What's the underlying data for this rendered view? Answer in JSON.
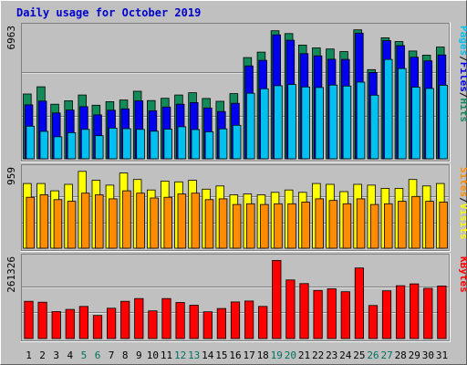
{
  "chart_data": {
    "type": "bar",
    "title": "Daily usage for October 2019",
    "categories": [
      "1",
      "2",
      "3",
      "4",
      "5",
      "6",
      "7",
      "8",
      "9",
      "10",
      "11",
      "12",
      "13",
      "14",
      "15",
      "16",
      "17",
      "18",
      "19",
      "20",
      "21",
      "22",
      "23",
      "24",
      "25",
      "26",
      "27",
      "28",
      "29",
      "30",
      "31"
    ],
    "weekend_days": [
      "5",
      "6",
      "12",
      "13",
      "19",
      "20",
      "26",
      "27"
    ],
    "grid": true,
    "colors": {
      "background": "#c0c0c0",
      "frame": "#808080",
      "title": "#0000cc",
      "grid": "#808080",
      "hits": "#128a5a",
      "files": "#0000ee",
      "pages": "#00c0f0",
      "visits": "#ffff00",
      "sites": "#ff8c00",
      "kbytes": "#ff0000",
      "weekend_label": "#007060",
      "weekday_label": "#000000"
    },
    "panels": [
      {
        "name": "top",
        "max_label": "6963",
        "ylim": [
          0,
          6963
        ],
        "axis_label_parts": [
          "Pages",
          "/",
          "Files",
          "/",
          "Hits"
        ],
        "axis_label_colors": [
          "pages",
          "black",
          "files",
          "black",
          "hits"
        ],
        "series": [
          {
            "name": "Hits",
            "color_key": "hits",
            "values": [
              3480,
              3870,
              2930,
              3120,
              3430,
              2880,
              3070,
              3160,
              3630,
              3130,
              3250,
              3430,
              3550,
              3240,
              3090,
              3500,
              5440,
              5730,
              6880,
              6730,
              6110,
              5960,
              5900,
              5760,
              6930,
              4790,
              6500,
              6300,
              5790,
              5570,
              6000
            ]
          },
          {
            "name": "Files",
            "color_key": "files",
            "values": [
              2900,
              3100,
              2460,
              2620,
              2800,
              2360,
              2610,
              2680,
              3120,
              2580,
              2780,
              2930,
              3020,
              2730,
              2540,
              2980,
              4990,
              5290,
              6660,
              6370,
              5650,
              5530,
              5350,
              5340,
              6750,
              4640,
              6350,
              6080,
              5460,
              5260,
              5580
            ]
          },
          {
            "name": "Pages",
            "color_key": "pages",
            "values": [
              1750,
              1470,
              1180,
              1400,
              1580,
              1240,
              1650,
              1620,
              1580,
              1480,
              1590,
              1720,
              1570,
              1450,
              1610,
              1800,
              3520,
              3760,
              3930,
              3990,
              3860,
              3830,
              3960,
              3910,
              4120,
              3420,
              5340,
              4850,
              3850,
              3780,
              3950
            ]
          }
        ]
      },
      {
        "name": "middle",
        "max_label": "959",
        "ylim": [
          0,
          959
        ],
        "axis_label_parts": [
          "Sites",
          "/",
          "Visits"
        ],
        "axis_label_colors": [
          "sites",
          "black",
          "visits"
        ],
        "series": [
          {
            "name": "Visits",
            "color_key": "visits",
            "values": [
              800,
              800,
              710,
              790,
              950,
              840,
              780,
              930,
              850,
              720,
              830,
              820,
              840,
              730,
              770,
              660,
              670,
              660,
              690,
              720,
              690,
              800,
              790,
              700,
              790,
              780,
              740,
              740,
              850,
              770,
              800
            ]
          },
          {
            "name": "Sites",
            "color_key": "sites",
            "values": [
              630,
              660,
              600,
              580,
              680,
              660,
              610,
              710,
              680,
              620,
              630,
              670,
              680,
              600,
              610,
              540,
              550,
              540,
              550,
              550,
              570,
              610,
              590,
              550,
              610,
              540,
              550,
              580,
              640,
              580,
              570
            ]
          }
        ]
      },
      {
        "name": "bottom",
        "max_label": "261326",
        "ylim": [
          0,
          261326
        ],
        "axis_label_parts": [
          "KBytes"
        ],
        "axis_label_colors": [
          "kbytes"
        ],
        "series": [
          {
            "name": "KBytes",
            "color_key": "kbytes",
            "values": [
              124000,
              121000,
              90000,
              97000,
              107000,
              77000,
              101000,
              124000,
              133000,
              92000,
              133000,
              120000,
              111000,
              89000,
              100000,
              122000,
              125000,
              107000,
              260000,
              195000,
              183000,
              160000,
              166000,
              156000,
              235000,
              110000,
              159000,
              176000,
              182000,
              167000,
              175000
            ]
          }
        ]
      }
    ]
  }
}
